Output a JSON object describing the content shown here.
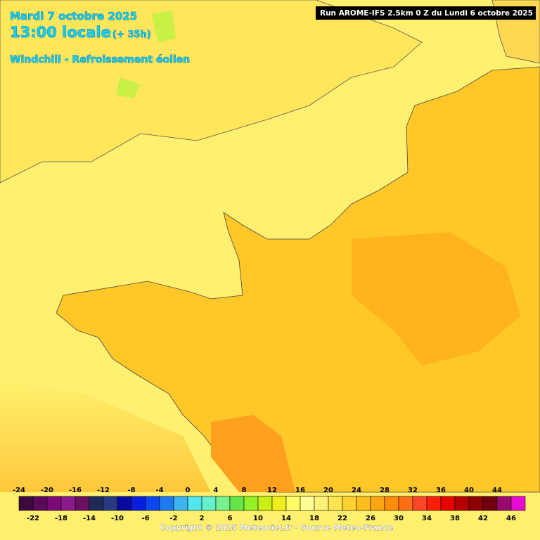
{
  "header": {
    "date": "Mardi 7 octobre 2025",
    "time": "13:00 locale",
    "lead": "(+ 35h)",
    "parameter": "Windchill - Refroissement éolien",
    "run": "Run AROME-IFS 2.5km 0 Z du Lundi 6 octobre 2025"
  },
  "legend": {
    "labels": [
      -24,
      -22,
      -20,
      -18,
      -16,
      -14,
      -12,
      -10,
      -8,
      -6,
      -4,
      -2,
      0,
      2,
      4,
      6,
      8,
      10,
      12,
      14,
      16,
      18,
      20,
      22,
      24,
      26,
      28,
      30,
      32,
      34,
      36,
      38,
      40,
      42,
      44,
      46
    ],
    "colors": [
      "#3c0a3c",
      "#5a0a5a",
      "#7a0a7a",
      "#8c1a8c",
      "#6a1060",
      "#1e2a5a",
      "#2a3a80",
      "#0a0aa0",
      "#0a1ee0",
      "#0a46f0",
      "#1e78f0",
      "#3cb4f0",
      "#50e6f0",
      "#64f0c8",
      "#78f08c",
      "#64e646",
      "#96f028",
      "#c8f014",
      "#f0f01e",
      "#ffff64",
      "#ffff96",
      "#fff078",
      "#ffe650",
      "#ffd232",
      "#ffbe1e",
      "#ffa514",
      "#ff8c0a",
      "#ff6e14",
      "#ff4628",
      "#ff1e0a",
      "#e60000",
      "#b40000",
      "#8c0000",
      "#6e0010",
      "#9a0a6e",
      "#e60ad2"
    ]
  },
  "footer": {
    "copyright": "Copyright © 2025 Meteociel.fr - Source Meteo-France"
  }
}
